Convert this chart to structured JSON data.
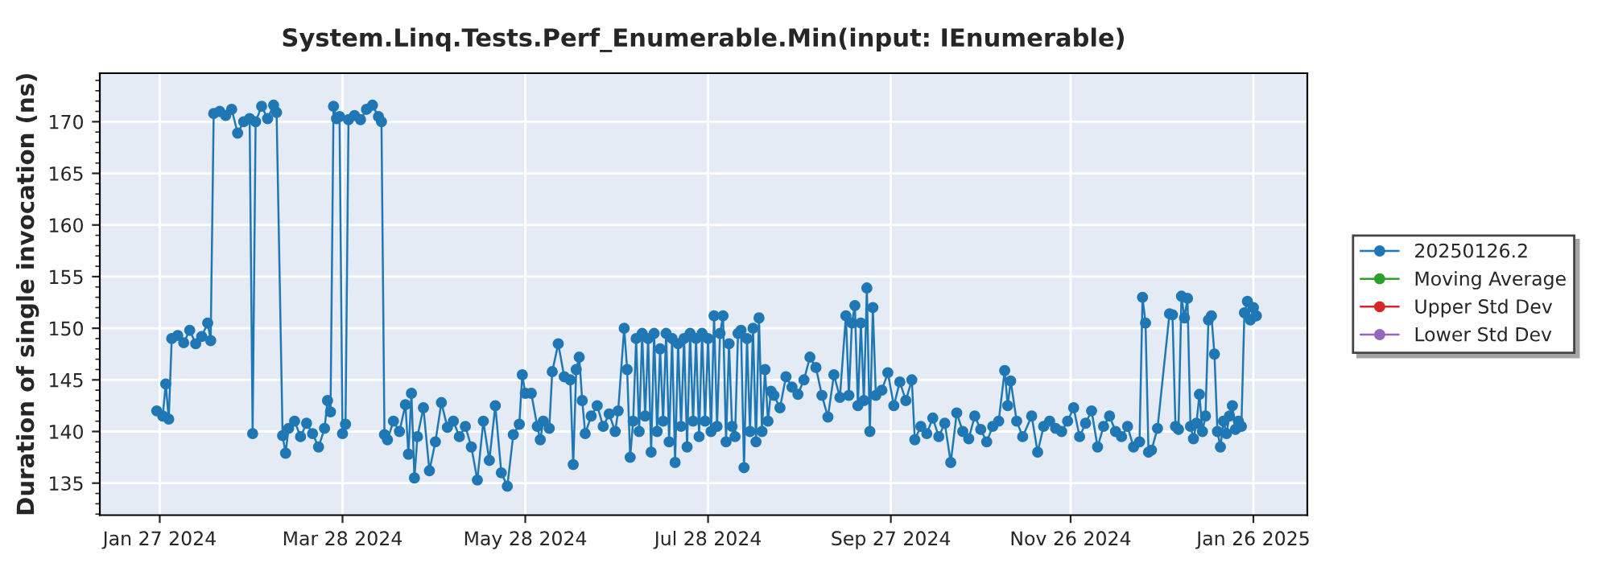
{
  "chart_data": {
    "type": "line",
    "title": "System.Linq.Tests.Perf_Enumerable.Min(input: IEnumerable)",
    "ylabel": "Duration of single invocation (ns)",
    "xlim": [
      "2024-01-07",
      "2025-02-13"
    ],
    "ylim": [
      131.9,
      174.7
    ],
    "xticks": [
      {
        "value": "2024-01-27",
        "label": "Jan 27 2024"
      },
      {
        "value": "2024-03-28",
        "label": "Mar 28 2024"
      },
      {
        "value": "2024-05-28",
        "label": "May 28 2024"
      },
      {
        "value": "2024-07-28",
        "label": "Jul 28 2024"
      },
      {
        "value": "2024-09-27",
        "label": "Sep 27 2024"
      },
      {
        "value": "2024-11-26",
        "label": "Nov 26 2024"
      },
      {
        "value": "2025-01-26",
        "label": "Jan 26 2025"
      }
    ],
    "yticks": [
      135,
      140,
      145,
      150,
      155,
      160,
      165,
      170
    ],
    "grid": true,
    "legend": "right",
    "marker": "circle",
    "line_style": "solid",
    "series": [
      {
        "name": "20250126.2",
        "color": "#1f77b4",
        "x": [
          "2024-01-26",
          "2024-01-28",
          "2024-01-29",
          "2024-01-30",
          "2024-01-31",
          "2024-02-02",
          "2024-02-04",
          "2024-02-06",
          "2024-02-08",
          "2024-02-10",
          "2024-02-12",
          "2024-02-13",
          "2024-02-14",
          "2024-02-16",
          "2024-02-18",
          "2024-02-20",
          "2024-02-22",
          "2024-02-24",
          "2024-02-26",
          "2024-02-27",
          "2024-02-28",
          "2024-03-01",
          "2024-03-03",
          "2024-03-05",
          "2024-03-06",
          "2024-03-08",
          "2024-03-09",
          "2024-03-10",
          "2024-03-12",
          "2024-03-14",
          "2024-03-16",
          "2024-03-18",
          "2024-03-20",
          "2024-03-22",
          "2024-03-23",
          "2024-03-24",
          "2024-03-25",
          "2024-03-26",
          "2024-03-27",
          "2024-03-28",
          "2024-03-29",
          "2024-03-30",
          "2024-04-01",
          "2024-04-03",
          "2024-04-05",
          "2024-04-07",
          "2024-04-09",
          "2024-04-10",
          "2024-04-11",
          "2024-04-12",
          "2024-04-14",
          "2024-04-16",
          "2024-04-18",
          "2024-04-19",
          "2024-04-20",
          "2024-04-21",
          "2024-04-22",
          "2024-04-24",
          "2024-04-26",
          "2024-04-28",
          "2024-04-30",
          "2024-05-02",
          "2024-05-04",
          "2024-05-06",
          "2024-05-08",
          "2024-05-10",
          "2024-05-12",
          "2024-05-14",
          "2024-05-16",
          "2024-05-18",
          "2024-05-20",
          "2024-05-22",
          "2024-05-24",
          "2024-05-26",
          "2024-05-27",
          "2024-05-28",
          "2024-05-30",
          "2024-06-01",
          "2024-06-02",
          "2024-06-03",
          "2024-06-05",
          "2024-06-06",
          "2024-06-08",
          "2024-06-10",
          "2024-06-12",
          "2024-06-13",
          "2024-06-14",
          "2024-06-15",
          "2024-06-16",
          "2024-06-17",
          "2024-06-19",
          "2024-06-21",
          "2024-06-23",
          "2024-06-25",
          "2024-06-27",
          "2024-06-28",
          "2024-06-30",
          "2024-07-01",
          "2024-07-02",
          "2024-07-03",
          "2024-07-04",
          "2024-07-05",
          "2024-07-06",
          "2024-07-07",
          "2024-07-08",
          "2024-07-09",
          "2024-07-10",
          "2024-07-11",
          "2024-07-12",
          "2024-07-13",
          "2024-07-14",
          "2024-07-15",
          "2024-07-16",
          "2024-07-17",
          "2024-07-18",
          "2024-07-19",
          "2024-07-20",
          "2024-07-21",
          "2024-07-22",
          "2024-07-23",
          "2024-07-24",
          "2024-07-25",
          "2024-07-26",
          "2024-07-27",
          "2024-07-28",
          "2024-07-29",
          "2024-07-30",
          "2024-07-31",
          "2024-08-01",
          "2024-08-02",
          "2024-08-03",
          "2024-08-04",
          "2024-08-05",
          "2024-08-06",
          "2024-08-07",
          "2024-08-08",
          "2024-08-09",
          "2024-08-10",
          "2024-08-11",
          "2024-08-12",
          "2024-08-13",
          "2024-08-14",
          "2024-08-15",
          "2024-08-16",
          "2024-08-17",
          "2024-08-18",
          "2024-08-19",
          "2024-08-21",
          "2024-08-23",
          "2024-08-25",
          "2024-08-27",
          "2024-08-29",
          "2024-08-31",
          "2024-09-02",
          "2024-09-04",
          "2024-09-06",
          "2024-09-08",
          "2024-09-10",
          "2024-09-12",
          "2024-09-13",
          "2024-09-14",
          "2024-09-15",
          "2024-09-16",
          "2024-09-17",
          "2024-09-18",
          "2024-09-19",
          "2024-09-20",
          "2024-09-21",
          "2024-09-22",
          "2024-09-24",
          "2024-09-26",
          "2024-09-28",
          "2024-09-30",
          "2024-10-02",
          "2024-10-04",
          "2024-10-05",
          "2024-10-07",
          "2024-10-09",
          "2024-10-11",
          "2024-10-13",
          "2024-10-15",
          "2024-10-17",
          "2024-10-19",
          "2024-10-21",
          "2024-10-23",
          "2024-10-25",
          "2024-10-27",
          "2024-10-29",
          "2024-10-31",
          "2024-11-02",
          "2024-11-04",
          "2024-11-05",
          "2024-11-06",
          "2024-11-08",
          "2024-11-10",
          "2024-11-13",
          "2024-11-15",
          "2024-11-17",
          "2024-11-19",
          "2024-11-21",
          "2024-11-23",
          "2024-11-25",
          "2024-11-27",
          "2024-11-29",
          "2024-12-01",
          "2024-12-03",
          "2024-12-05",
          "2024-12-07",
          "2024-12-09",
          "2024-12-11",
          "2024-12-13",
          "2024-12-15",
          "2024-12-17",
          "2024-12-19",
          "2024-12-20",
          "2024-12-21",
          "2024-12-22",
          "2024-12-23",
          "2024-12-25",
          "2024-12-29",
          "2024-12-30",
          "2024-12-31",
          "2025-01-01",
          "2025-01-02",
          "2025-01-03",
          "2025-01-04",
          "2025-01-05",
          "2025-01-06",
          "2025-01-07",
          "2025-01-08",
          "2025-01-09",
          "2025-01-10",
          "2025-01-11",
          "2025-01-12",
          "2025-01-13",
          "2025-01-14",
          "2025-01-15",
          "2025-01-16",
          "2025-01-17",
          "2025-01-18",
          "2025-01-19",
          "2025-01-20",
          "2025-01-21",
          "2025-01-22",
          "2025-01-23",
          "2025-01-24",
          "2025-01-25",
          "2025-01-26",
          "2025-01-27"
        ],
        "values": [
          142.0,
          141.5,
          144.6,
          141.2,
          149.0,
          149.3,
          148.6,
          149.8,
          148.5,
          149.2,
          150.5,
          148.8,
          170.8,
          171.0,
          170.6,
          171.2,
          168.9,
          170.0,
          170.3,
          139.8,
          170.0,
          171.5,
          170.3,
          171.6,
          170.9,
          139.6,
          137.9,
          140.3,
          141.0,
          139.5,
          140.8,
          139.8,
          138.5,
          140.3,
          143.0,
          141.9,
          171.5,
          170.3,
          170.5,
          139.8,
          140.7,
          170.2,
          170.6,
          170.2,
          171.2,
          171.6,
          170.5,
          170.0,
          139.7,
          139.2,
          141.0,
          140.0,
          142.6,
          137.8,
          143.7,
          135.5,
          139.5,
          142.3,
          136.2,
          139.0,
          142.8,
          140.4,
          141.0,
          139.5,
          140.5,
          138.5,
          135.3,
          141.0,
          137.2,
          142.5,
          136.0,
          134.7,
          139.7,
          140.7,
          145.5,
          143.7,
          143.7,
          140.5,
          139.2,
          141.0,
          140.3,
          145.8,
          148.5,
          145.3,
          145.0,
          136.8,
          146.0,
          147.2,
          143.0,
          139.8,
          141.5,
          142.5,
          140.5,
          141.7,
          140.0,
          142.0,
          150.0,
          146.0,
          137.5,
          141.0,
          149.0,
          140.0,
          149.5,
          141.5,
          149.0,
          138.0,
          149.5,
          140.0,
          148.0,
          141.0,
          149.5,
          139.0,
          149.0,
          137.0,
          148.5,
          140.5,
          149.0,
          138.5,
          149.5,
          141.0,
          149.0,
          139.5,
          149.5,
          141.0,
          149.0,
          140.0,
          151.2,
          140.5,
          149.5,
          151.2,
          139.0,
          148.5,
          140.5,
          139.5,
          149.5,
          149.8,
          136.5,
          149.0,
          140.0,
          150.0,
          139.0,
          151.0,
          140.0,
          146.0,
          141.0,
          143.9,
          143.5,
          142.3,
          145.3,
          144.3,
          143.6,
          145.0,
          147.2,
          146.2,
          143.5,
          141.4,
          145.5,
          143.3,
          151.2,
          143.5,
          150.5,
          152.2,
          142.5,
          150.5,
          143.0,
          153.9,
          140.0,
          152.0,
          143.5,
          144.0,
          145.7,
          142.5,
          144.8,
          143.0,
          145.0,
          139.2,
          140.5,
          139.8,
          141.3,
          139.5,
          140.8,
          137.0,
          141.8,
          140.0,
          139.3,
          141.5,
          140.2,
          139.0,
          140.5,
          141.0,
          145.9,
          142.5,
          144.9,
          141.0,
          139.5,
          141.5,
          138.0,
          140.5,
          141.0,
          140.3,
          140.0,
          141.0,
          142.3,
          139.5,
          140.8,
          142.0,
          138.5,
          140.5,
          141.5,
          140.0,
          139.5,
          140.5,
          138.5,
          139.0,
          153.0,
          150.5,
          138.0,
          138.2,
          140.3,
          151.4,
          151.3,
          140.5,
          140.2,
          153.1,
          151.0,
          152.9,
          140.5,
          139.3,
          140.8,
          143.6,
          140.0,
          141.5,
          150.8,
          151.2,
          147.5,
          140.0,
          138.5,
          141.0,
          139.8,
          141.5,
          142.5,
          140.2,
          141.0,
          140.5,
          151.5,
          152.6,
          150.8,
          152.0,
          151.2
        ]
      },
      {
        "name": "Moving Average",
        "color": "#2ca02c"
      },
      {
        "name": "Upper Std Dev",
        "color": "#d62728"
      },
      {
        "name": "Lower Std Dev",
        "color": "#9467bd"
      }
    ]
  }
}
